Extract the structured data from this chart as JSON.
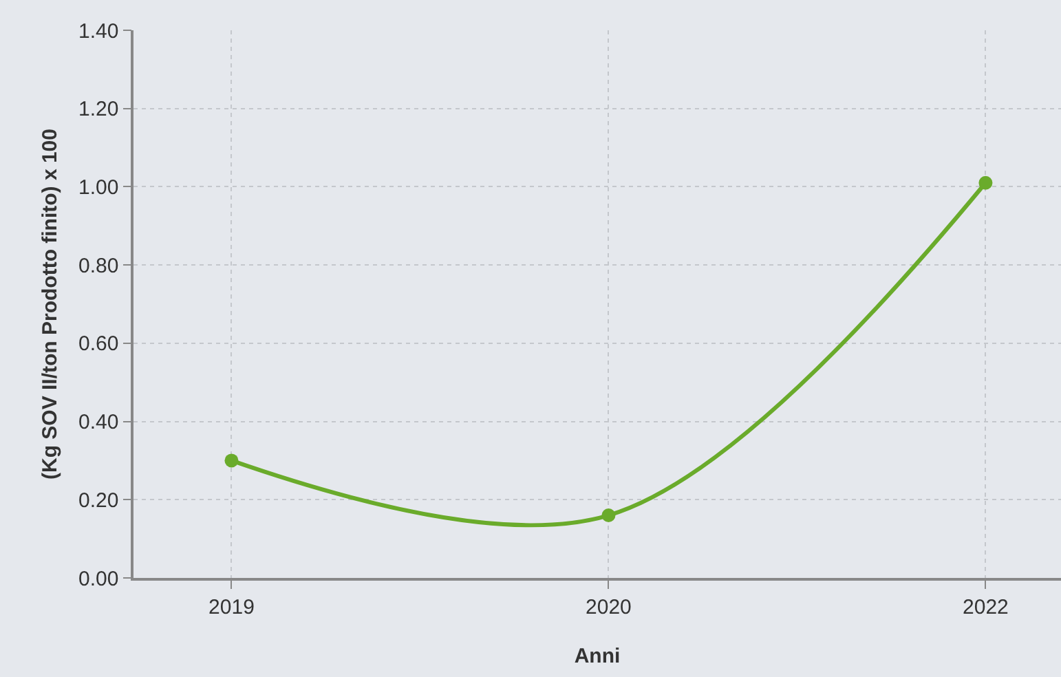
{
  "chart_data": {
    "type": "line",
    "xlabel": "Anni",
    "ylabel": "(Kg SOV II/ton Prodotto finito) x 100",
    "categories": [
      "2019",
      "2020",
      "2022"
    ],
    "series": [
      {
        "color": "#6aab2b",
        "values": [
          0.3,
          0.16,
          1.01
        ]
      }
    ],
    "ylim": [
      0,
      1.4
    ],
    "yticks": [
      {
        "value": 0,
        "label": "0.00"
      },
      {
        "value": 0.2,
        "label": "0.20"
      },
      {
        "value": 0.4,
        "label": "0.40"
      },
      {
        "value": 0.6,
        "label": "0.60"
      },
      {
        "value": 0.8,
        "label": "0.80"
      },
      {
        "value": 1.0,
        "label": "1.00"
      },
      {
        "value": 1.2,
        "label": "1.20"
      },
      {
        "value": 1.4,
        "label": "1.40"
      }
    ],
    "grid": true,
    "marker": "circle",
    "line_style": "solid"
  }
}
